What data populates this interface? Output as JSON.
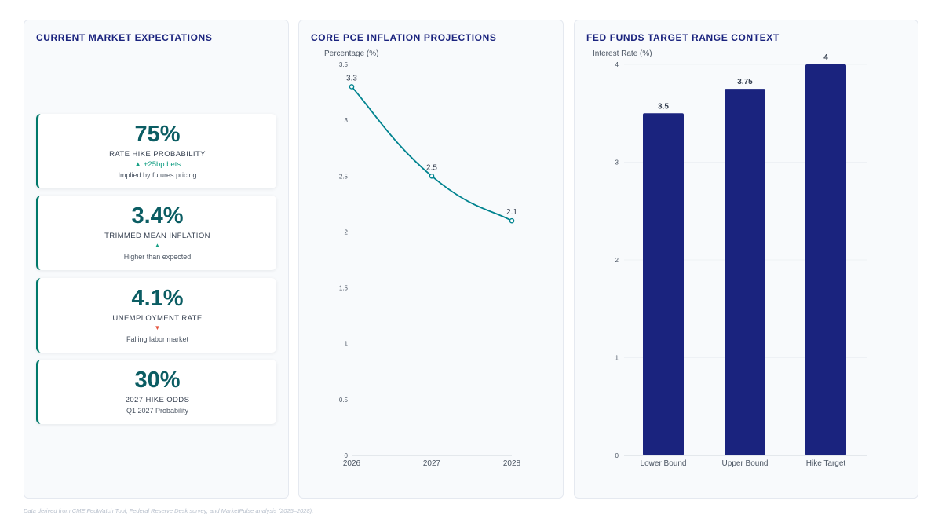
{
  "kpi_panel": {
    "title": "CURRENT MARKET EXPECTATIONS",
    "cards": [
      {
        "value": "75%",
        "label": "RATE HIKE PROBABILITY",
        "delta": "▲ +25bp bets",
        "delta_dir": "up",
        "note": "Implied by futures pricing"
      },
      {
        "value": "3.4%",
        "label": "TRIMMED MEAN INFLATION",
        "delta": "▲",
        "delta_dir": "up",
        "note": "Higher than expected"
      },
      {
        "value": "4.1%",
        "label": "UNEMPLOYMENT RATE",
        "delta": "▼",
        "delta_dir": "down",
        "note": "Falling labor market"
      },
      {
        "value": "30%",
        "label": "2027 HIKE ODDS",
        "delta": "",
        "delta_dir": "none",
        "note": "Q1 2027 Probability"
      }
    ]
  },
  "line_panel": {
    "title": "CORE PCE INFLATION PROJECTIONS"
  },
  "bar_panel": {
    "title": "FED FUNDS TARGET RANGE CONTEXT"
  },
  "colors": {
    "title": "#1a237e",
    "accent": "#00796b",
    "line": "#00838f",
    "bar": "#1a237e",
    "up": "#16a085",
    "down": "#e5533d"
  },
  "chart_data": [
    {
      "type": "line",
      "title": "CORE PCE INFLATION PROJECTIONS",
      "ylabel": "Percentage (%)",
      "xlabel": "",
      "x": [
        "2026",
        "2027",
        "2028"
      ],
      "series": [
        {
          "values": [
            3.3,
            2.5,
            2.1
          ]
        }
      ],
      "data_labels": [
        "3.3",
        "2.5",
        "2.1"
      ],
      "ylim": [
        0,
        3.5
      ],
      "yticks": [
        0,
        0.5,
        1,
        1.5,
        2,
        2.5,
        3,
        3.5
      ],
      "ytick_labels": [
        "0",
        "0.5",
        "1",
        "1.5",
        "2",
        "2.5",
        "3",
        "3.5"
      ],
      "grid": false,
      "smooth": true
    },
    {
      "type": "bar",
      "title": "FED FUNDS TARGET RANGE CONTEXT",
      "ylabel": "Interest Rate (%)",
      "xlabel": "",
      "categories": [
        "Lower Bound",
        "Upper Bound",
        "Hike Target"
      ],
      "values": [
        3.5,
        3.75,
        4
      ],
      "data_labels": [
        "3.5",
        "3.75",
        "4"
      ],
      "ylim": [
        0,
        4
      ],
      "yticks": [
        0,
        1,
        2,
        3,
        4
      ],
      "ytick_labels": [
        "0",
        "1",
        "2",
        "3",
        "4"
      ],
      "grid": true
    }
  ],
  "footer": "Data derived from CME FedWatch Tool, Federal Reserve Desk survey, and MarketPulse analysis (2025–2028)."
}
